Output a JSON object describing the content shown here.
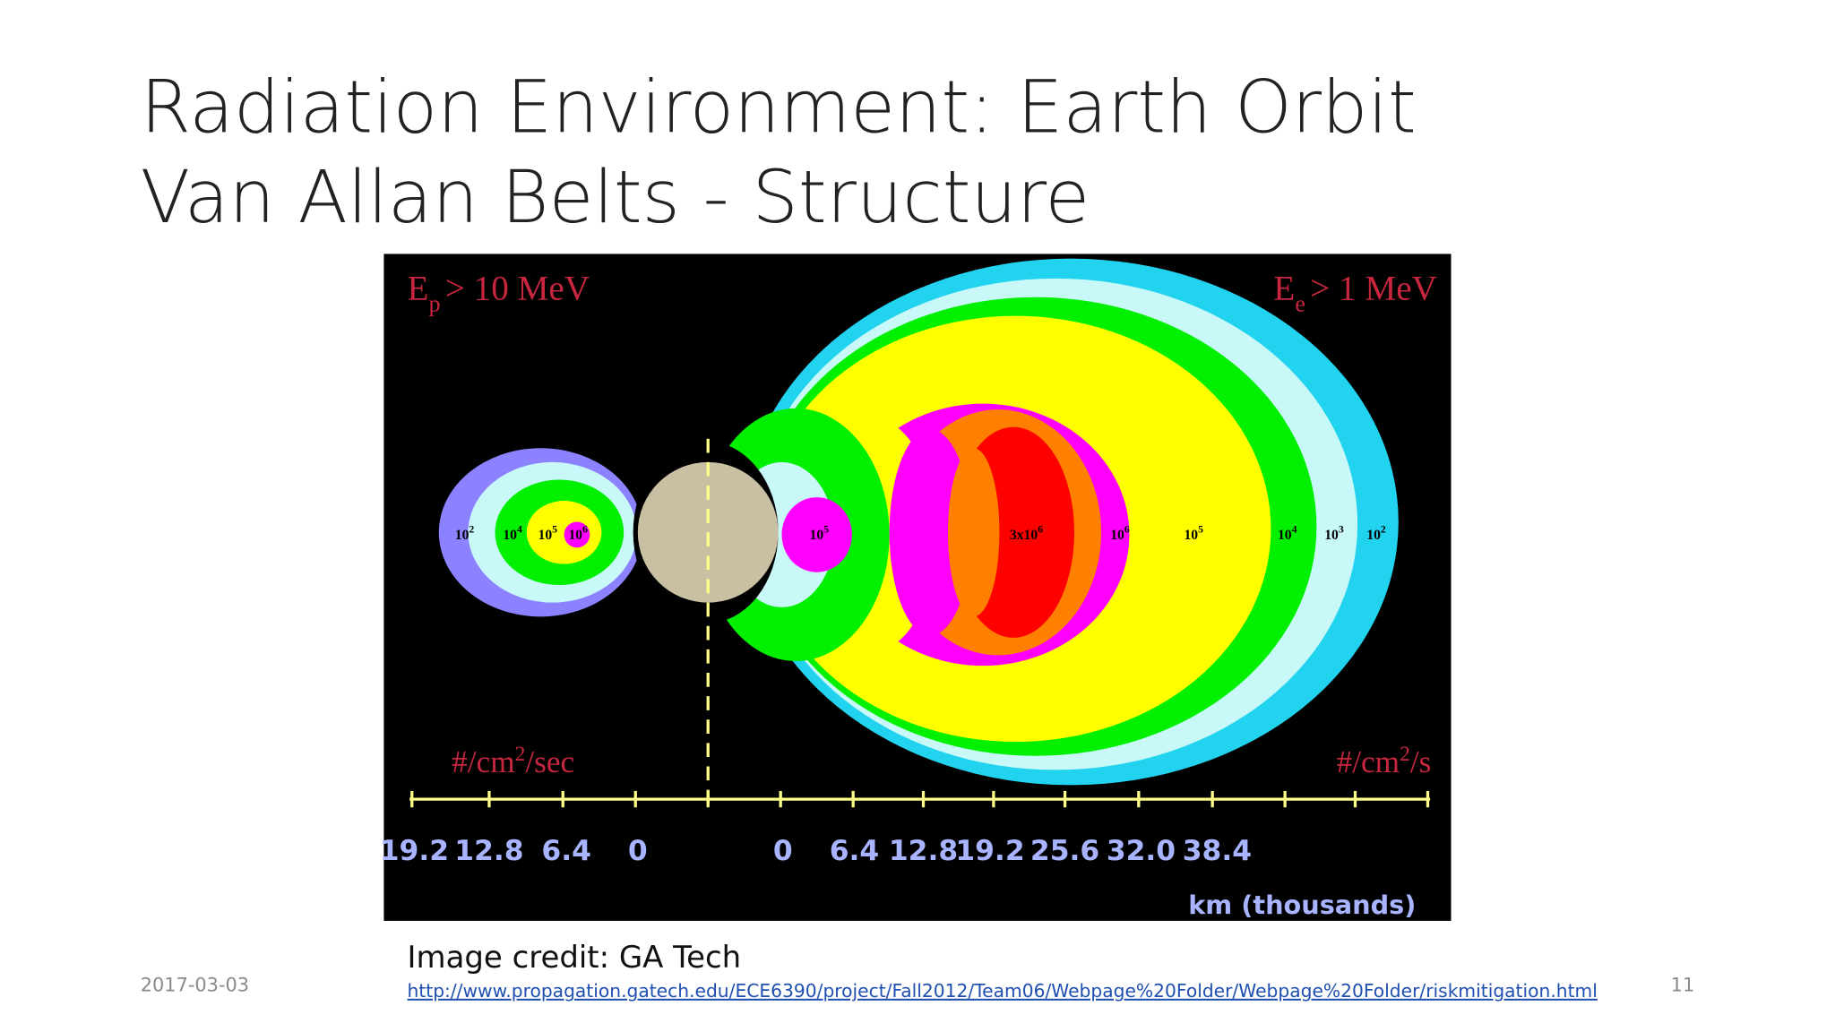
{
  "slide": {
    "title_lines": [
      "Radiation Environment: Earth Orbit",
      "Van Allan Belts - Structure"
    ],
    "figure": {
      "proton_label": {
        "symbol": "E",
        "subscript": "p",
        "text": "> 10 MeV"
      },
      "electron_label": {
        "symbol": "E",
        "subscript": "e",
        "text": "> 1 MeV"
      },
      "proton_units": {
        "text": "#/cm",
        "superscript": "2",
        "suffix": "/sec"
      },
      "electron_units": {
        "text": "#/cm",
        "superscript": "2",
        "suffix": "/s"
      },
      "proton_contours": [
        {
          "base": "10",
          "exponent": "2"
        },
        {
          "base": "10",
          "exponent": "4"
        },
        {
          "base": "10",
          "exponent": "5"
        },
        {
          "base": "10",
          "exponent": "6"
        }
      ],
      "electron_contours": [
        {
          "base": "10",
          "exponent": "5"
        },
        {
          "base": "3x10",
          "exponent": "6"
        },
        {
          "base": "10",
          "exponent": "6"
        },
        {
          "base": "10",
          "exponent": "5"
        },
        {
          "base": "10",
          "exponent": "4"
        },
        {
          "base": "10",
          "exponent": "3"
        },
        {
          "base": "10",
          "exponent": "2"
        }
      ],
      "left_axis_labels": [
        "19.2",
        "12.8",
        "6.4",
        "0"
      ],
      "right_axis_labels": [
        "0",
        "6.4",
        "12.8",
        "19.2",
        "25.6",
        "32.0",
        "38.4"
      ],
      "axis_title": "km (thousands)"
    },
    "credit": "Image credit: GA Tech",
    "url": "http://www.propagation.gatech.edu/ECE6390/project/Fall2012/Team06/Webpage%20Folder/Webpage%20Folder/riskmitigation.html",
    "date": "2017-03-03",
    "page_number": "11"
  }
}
